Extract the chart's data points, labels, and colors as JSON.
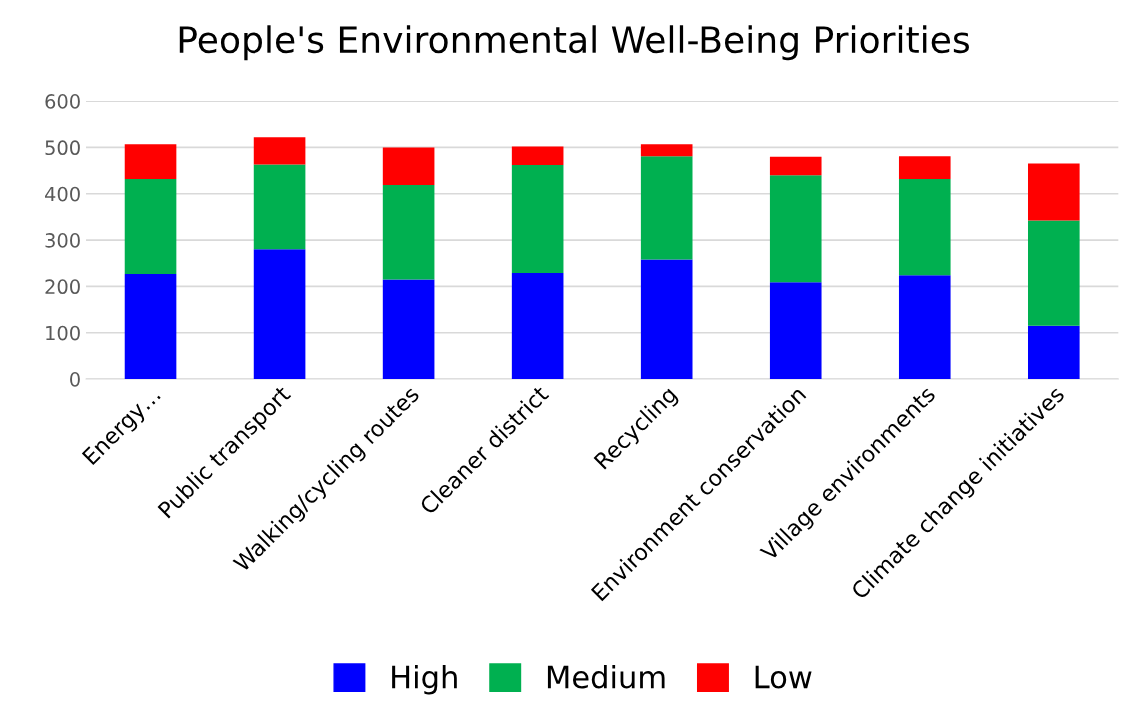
{
  "chart_data": {
    "type": "bar",
    "title": "People's Environmental Well-Being Priorities",
    "stacked": true,
    "categories": [
      "Energy…",
      "Public transport",
      "Walking/cycling routes",
      "Cleaner district",
      "Recycling",
      "Environment conservation",
      "Village environments",
      "Climate change initiatives"
    ],
    "series": [
      {
        "name": "High",
        "color": "#0000ff",
        "values": [
          227,
          280,
          215,
          229,
          258,
          209,
          224,
          115
        ]
      },
      {
        "name": "Medium",
        "color": "#00b050",
        "values": [
          205,
          183,
          204,
          233,
          223,
          231,
          208,
          227
        ]
      },
      {
        "name": "Low",
        "color": "#ff0000",
        "values": [
          75,
          59,
          81,
          40,
          26,
          40,
          49,
          123
        ]
      }
    ],
    "ylim": [
      0,
      600
    ],
    "yticks": [
      0,
      100,
      200,
      300,
      400,
      500,
      600
    ],
    "grid": "y",
    "legend": "bottom"
  }
}
